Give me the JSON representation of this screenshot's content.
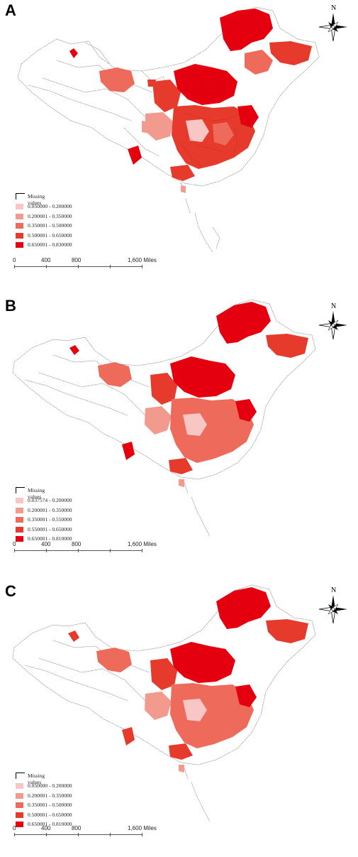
{
  "panels": [
    {
      "letter": "A",
      "legend": {
        "missing_label": "Missing values",
        "classes": [
          {
            "label": "0.050000 - 0.200000",
            "color": "#f9c6c6"
          },
          {
            "label": "0.200001 - 0.350000",
            "color": "#f39a8f"
          },
          {
            "label": "0.350001 - 0.500000",
            "color": "#ee6a5a"
          },
          {
            "label": "0.500001 - 0.650000",
            "color": "#e53a2c"
          },
          {
            "label": "0.650001 - 0.830000",
            "color": "#e4000f"
          }
        ]
      },
      "scale": {
        "ticks": [
          "0",
          "400",
          "800",
          "1,600 Miles"
        ]
      },
      "compass_label": "N"
    },
    {
      "letter": "B",
      "legend": {
        "missing_label": "Missing values",
        "classes": [
          {
            "label": "0.037574 - 0.200000",
            "color": "#f9c6c6"
          },
          {
            "label": "0.200001 - 0.350000",
            "color": "#f39a8f"
          },
          {
            "label": "0.350001 - 0.550000",
            "color": "#ee6a5a"
          },
          {
            "label": "0.550001 - 0.650000",
            "color": "#e53a2c"
          },
          {
            "label": "0.650001 - 0.810000",
            "color": "#e4000f"
          }
        ]
      },
      "scale": {
        "ticks": [
          "0",
          "400",
          "800",
          "1,600 Miles"
        ]
      },
      "compass_label": "N"
    },
    {
      "letter": "C",
      "legend": {
        "missing_label": "Missing values",
        "classes": [
          {
            "label": "0.050000 - 0.200000",
            "color": "#f9c6c6"
          },
          {
            "label": "0.200001 - 0.350000",
            "color": "#f39a8f"
          },
          {
            "label": "0.350001 - 0.500000",
            "color": "#ee6a5a"
          },
          {
            "label": "0.500001 - 0.650000",
            "color": "#e53a2c"
          },
          {
            "label": "0.650001 - 0.810000",
            "color": "#e4000f"
          }
        ]
      },
      "scale": {
        "ticks": [
          "0",
          "400",
          "800",
          "1,600 Miles"
        ]
      },
      "compass_label": "N"
    }
  ]
}
